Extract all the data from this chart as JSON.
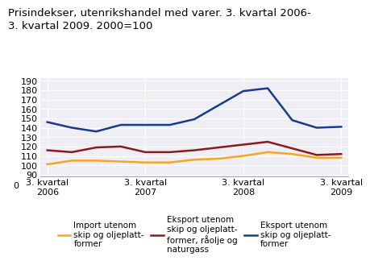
{
  "title": "Prisindekser, utenrikshandel med varer. 3. kvartal 2006-\n3. kvartal 2009. 2000=100",
  "quarters": [
    0,
    1,
    2,
    3,
    4,
    5,
    6,
    7,
    8,
    9,
    10,
    11,
    12
  ],
  "xtick_positions": [
    0,
    4,
    8,
    12
  ],
  "xtick_labels": [
    "3. kvartal\n2006",
    "3. kvartal\n2007",
    "3. kvartal\n2008",
    "3. kvartal\n2009"
  ],
  "ylim": [
    88,
    193
  ],
  "yticks": [
    90,
    100,
    110,
    120,
    130,
    140,
    150,
    160,
    170,
    180,
    190
  ],
  "import_utenom": [
    101,
    105,
    105,
    104,
    103,
    103,
    106,
    107,
    110,
    114,
    112,
    108,
    108
  ],
  "eksport_utenom_raaolje": [
    116,
    114,
    119,
    120,
    114,
    114,
    116,
    119,
    122,
    125,
    118,
    111,
    112
  ],
  "eksport_utenom": [
    146,
    140,
    136,
    143,
    143,
    143,
    149,
    164,
    179,
    182,
    148,
    140,
    141
  ],
  "color_import": "#f5a623",
  "color_eksport_raaolje": "#8b1a1a",
  "color_eksport": "#1a3a8b",
  "legend_labels": [
    "Import utenom\nskip og oljeplatt-\nformer",
    "Eksport utenom\nskip og oljeplatt-\nformer, råolje og\nnaturgass",
    "Eksport utenom\nskip og oljeplatt-\nformer"
  ],
  "linewidth": 1.8,
  "title_fontsize": 9.5,
  "tick_fontsize": 8,
  "legend_fontsize": 7.5,
  "background_color": "#eeeef4"
}
